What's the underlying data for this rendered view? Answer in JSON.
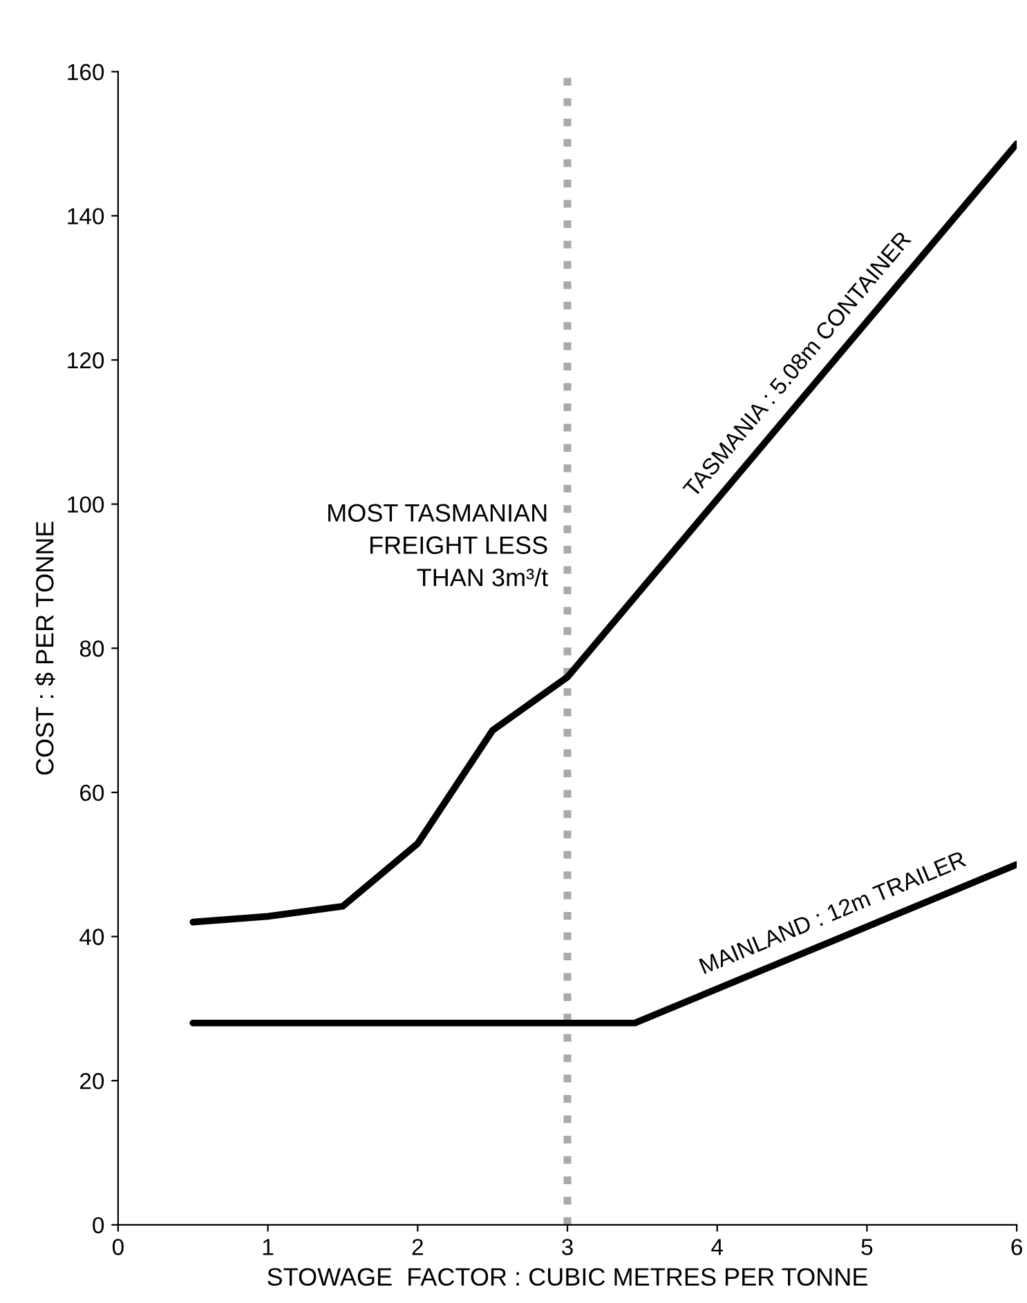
{
  "chart_data": {
    "type": "line",
    "xlabel": "STOWAGE  FACTOR : CUBIC METRES PER TONNE",
    "ylabel": "COST : $ PER TONNE",
    "series": [
      {
        "name": "TASMANIA : 5.08m CONTAINER",
        "color": "#000000",
        "x": [
          0.5,
          1,
          1.5,
          2,
          2.5,
          3,
          6
        ],
        "values": [
          42,
          42.8,
          44.2,
          52.9,
          68.6,
          76,
          150
        ]
      },
      {
        "name": "MAINLAND : 12m TRAILER",
        "color": "#000000",
        "x": [
          0.5,
          3.45,
          6
        ],
        "values": [
          28,
          28,
          50
        ]
      }
    ],
    "xlim": [
      0,
      6
    ],
    "ylim": [
      0,
      160
    ],
    "xticks": [
      0,
      1,
      2,
      3,
      4,
      5,
      6
    ],
    "yticks": [
      0,
      20,
      40,
      60,
      80,
      100,
      120,
      140,
      160
    ],
    "ref_lines": [
      {
        "axis": "x",
        "value": 3,
        "color": "#aaaaaa",
        "line_style": "dotted"
      }
    ],
    "annotations": [
      {
        "text": "MOST TASMANIAN\nFREIGHT LESS\nTHAN 3m³/t",
        "x": 3,
        "y": 94
      }
    ],
    "grid": false,
    "legend": false,
    "marker": "none",
    "line_style": "solid"
  }
}
